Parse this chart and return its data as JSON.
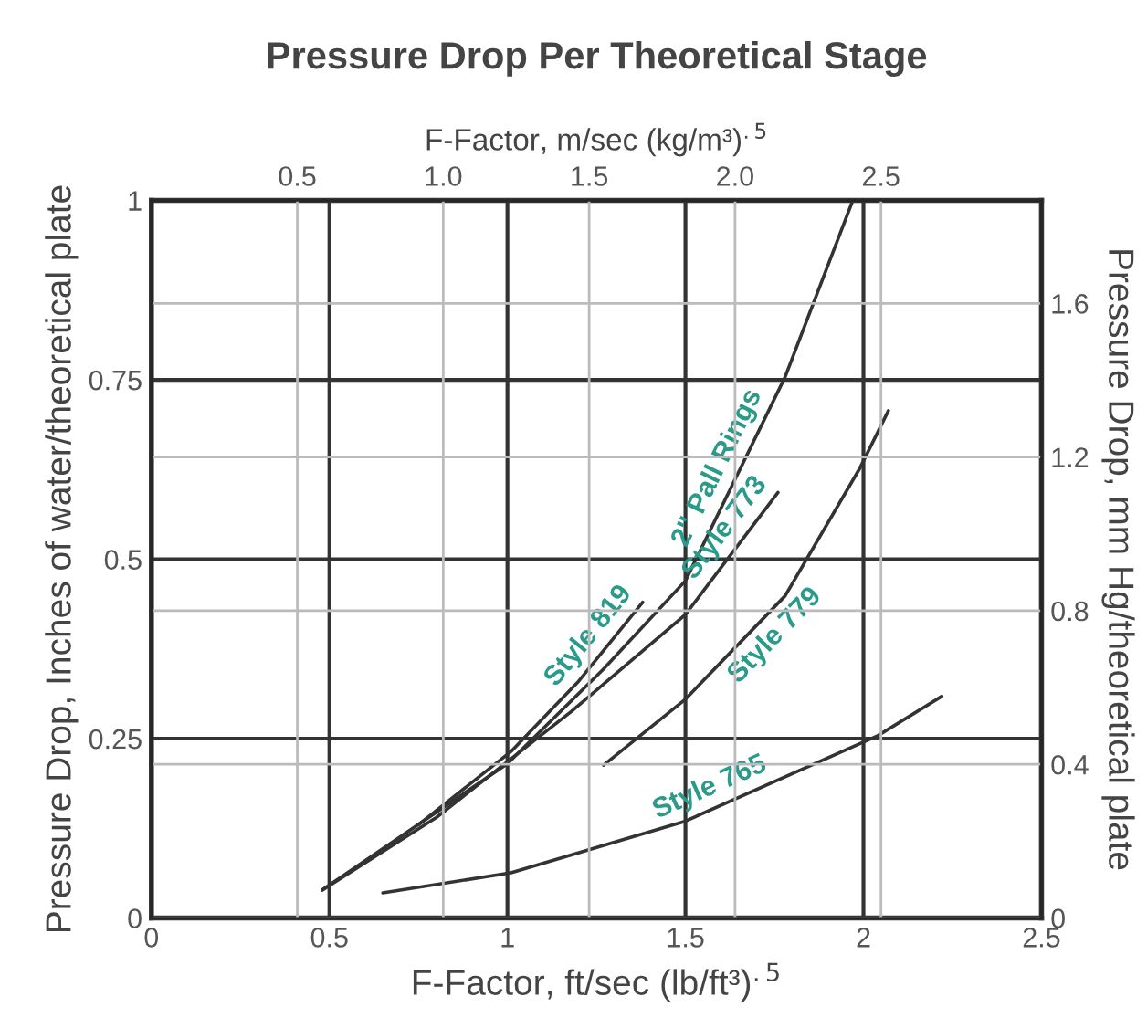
{
  "chart_data": {
    "type": "line",
    "title": "Pressure Drop Per Theoretical Stage",
    "xlabel": "F-Factor, ft/sec (lb/ft³)$^{.5}$",
    "x2label": "F-Factor, m/sec (kg/m³)$^{.5}$",
    "ylabel": "Pressure Drop, Inches of water/theoretical plate",
    "y2label": "Pressure Drop, mm Hg/theoretical plate",
    "xlim": [
      0,
      2.5
    ],
    "xticks": [
      0,
      0.5,
      1,
      1.5,
      2,
      2.5
    ],
    "x2lim": [
      0,
      3.05
    ],
    "x2ticks": [
      {
        "value": 0.5,
        "label": "0.5"
      },
      {
        "value": 1.0,
        "label": "1.0"
      },
      {
        "value": 1.5,
        "label": "1.5"
      },
      {
        "value": 2.0,
        "label": "2.0"
      },
      {
        "value": 2.5,
        "label": "2.5"
      }
    ],
    "ylim": [
      0,
      1
    ],
    "yticks": [
      0,
      0.25,
      0.5,
      0.75,
      1
    ],
    "y2lim": [
      0,
      1.868
    ],
    "y2ticks": [
      0,
      0.4,
      0.8,
      1.2,
      1.6
    ],
    "grid": true,
    "legend": false,
    "marker": "none",
    "line_style": "solid",
    "series": [
      {
        "name": "2\" Pall Rings",
        "color": "#333333",
        "x": [
          0.48,
          1.0,
          1.27,
          1.5,
          1.78,
          1.97
        ],
        "values": [
          0.039,
          0.215,
          0.347,
          0.47,
          0.754,
          1.0
        ]
      },
      {
        "name": "Style 773",
        "color": "#333333",
        "x": [
          0.48,
          0.8,
          1.18,
          1.5,
          1.76
        ],
        "values": [
          0.039,
          0.14,
          0.288,
          0.423,
          0.593
        ]
      },
      {
        "name": "Style 819",
        "color": "#333333",
        "x": [
          0.75,
          1.01,
          1.2,
          1.38
        ],
        "values": [
          0.13,
          0.232,
          0.33,
          0.44
        ]
      },
      {
        "name": "Style 779",
        "color": "#333333",
        "x": [
          1.27,
          1.5,
          1.78,
          1.99,
          2.07
        ],
        "values": [
          0.213,
          0.305,
          0.449,
          0.627,
          0.707
        ]
      },
      {
        "name": "Style 765",
        "color": "#333333",
        "x": [
          0.65,
          1.01,
          1.5,
          2.04,
          2.22
        ],
        "values": [
          0.035,
          0.063,
          0.135,
          0.254,
          0.309
        ]
      }
    ]
  }
}
